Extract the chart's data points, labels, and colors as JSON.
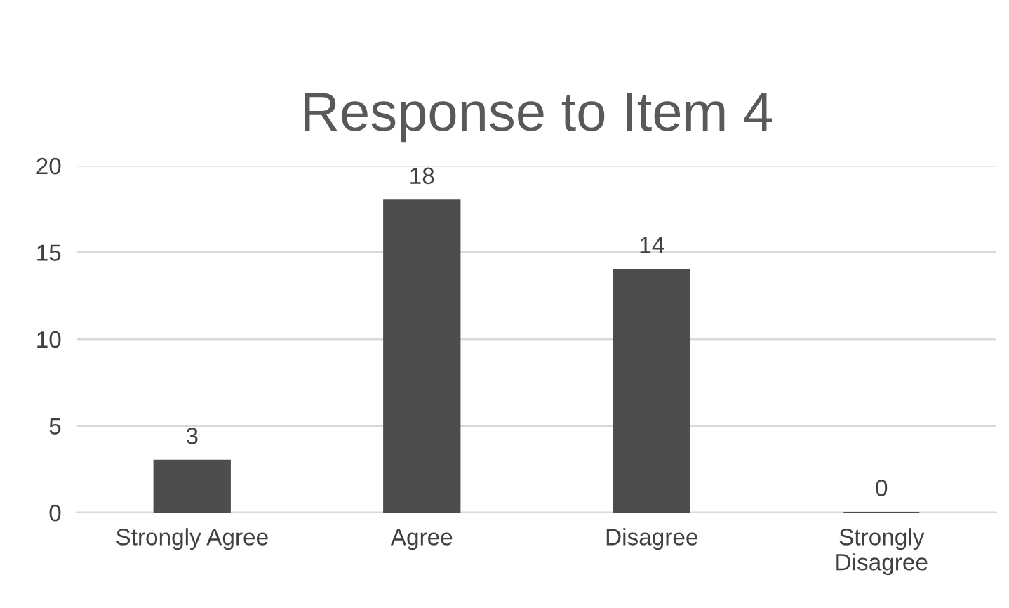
{
  "chart_data": {
    "type": "bar",
    "title": "Response to Item 4",
    "categories": [
      "Strongly Agree",
      "Agree",
      "Disagree",
      "Strongly\nDisagree"
    ],
    "values": [
      3,
      18,
      14,
      0
    ],
    "color": "#4d4d4d",
    "ylim": [
      0,
      20
    ],
    "yticks": [
      0,
      5,
      10,
      15,
      20
    ],
    "grid": "y",
    "data_labels": true
  }
}
